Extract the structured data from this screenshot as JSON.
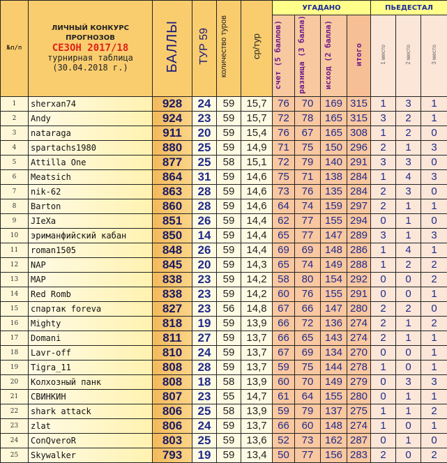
{
  "header": {
    "num_label": "№п/п",
    "title_line1": "ЛИЧНЫЙ КОНКУРС",
    "title_line2": "ПРОГНОЗОВ",
    "season": "СЕЗОН 2017/18",
    "subtitle": "турнирная таблица",
    "date": "(30.04.2018 г.)",
    "balls": "БАЛЛЫ",
    "tour": "ТУР 59",
    "tours_count": "количество туров",
    "avg": "ср/тур",
    "guessed_group": "УГАДАНО",
    "score": "счет (5 баллов)",
    "diff": "разница (3 балла)",
    "outcome": "исход (2 балла)",
    "total": "итого",
    "podium_group": "ПЬЕДЕСТАЛ",
    "place1": "1 место",
    "place2": "2 место",
    "place3": "3 место"
  },
  "rows": [
    [
      "1",
      "sherxan74",
      "928",
      "24",
      "59",
      "15,7",
      "76",
      "70",
      "169",
      "315",
      "1",
      "3",
      "1"
    ],
    [
      "2",
      "Andy",
      "924",
      "23",
      "59",
      "15,7",
      "72",
      "78",
      "165",
      "315",
      "3",
      "2",
      "1"
    ],
    [
      "3",
      "nataraga",
      "911",
      "20",
      "59",
      "15,4",
      "76",
      "67",
      "165",
      "308",
      "1",
      "2",
      "0"
    ],
    [
      "4",
      "spartachs1980",
      "880",
      "25",
      "59",
      "14,9",
      "71",
      "75",
      "150",
      "296",
      "2",
      "1",
      "3"
    ],
    [
      "5",
      "Attilla One",
      "877",
      "25",
      "58",
      "15,1",
      "72",
      "79",
      "140",
      "291",
      "3",
      "3",
      "0"
    ],
    [
      "6",
      "Meatsich",
      "864",
      "31",
      "59",
      "14,6",
      "75",
      "71",
      "138",
      "284",
      "1",
      "4",
      "3"
    ],
    [
      "7",
      "nik-62",
      "863",
      "28",
      "59",
      "14,6",
      "73",
      "76",
      "135",
      "284",
      "2",
      "3",
      "0"
    ],
    [
      "8",
      "Barton",
      "860",
      "28",
      "59",
      "14,6",
      "64",
      "74",
      "159",
      "297",
      "2",
      "1",
      "1"
    ],
    [
      "9",
      "JIeXa",
      "851",
      "26",
      "59",
      "14,4",
      "62",
      "77",
      "155",
      "294",
      "0",
      "1",
      "0"
    ],
    [
      "10",
      "эриманфийский кабан",
      "850",
      "14",
      "59",
      "14,4",
      "65",
      "77",
      "147",
      "289",
      "3",
      "1",
      "3"
    ],
    [
      "11",
      "roman1505",
      "848",
      "26",
      "59",
      "14,4",
      "69",
      "69",
      "148",
      "286",
      "1",
      "4",
      "1"
    ],
    [
      "12",
      "NAP",
      "845",
      "20",
      "59",
      "14,3",
      "65",
      "74",
      "149",
      "288",
      "1",
      "2",
      "2"
    ],
    [
      "13",
      "MAP",
      "838",
      "23",
      "59",
      "14,2",
      "58",
      "80",
      "154",
      "292",
      "0",
      "0",
      "2"
    ],
    [
      "14",
      "Red Romb",
      "838",
      "23",
      "59",
      "14,2",
      "60",
      "76",
      "155",
      "291",
      "0",
      "0",
      "1"
    ],
    [
      "15",
      "спартак foreva",
      "827",
      "23",
      "56",
      "14,8",
      "67",
      "66",
      "147",
      "280",
      "2",
      "2",
      "0"
    ],
    [
      "16",
      "Mighty",
      "818",
      "19",
      "59",
      "13,9",
      "66",
      "72",
      "136",
      "274",
      "2",
      "1",
      "2"
    ],
    [
      "17",
      "Domani",
      "811",
      "27",
      "59",
      "13,7",
      "66",
      "65",
      "143",
      "274",
      "2",
      "1",
      "1"
    ],
    [
      "18",
      "Lavr-off",
      "810",
      "24",
      "59",
      "13,7",
      "67",
      "69",
      "134",
      "270",
      "0",
      "0",
      "1"
    ],
    [
      "19",
      "Tigra_11",
      "808",
      "28",
      "59",
      "13,7",
      "59",
      "75",
      "144",
      "278",
      "1",
      "0",
      "1"
    ],
    [
      "20",
      "Колхозный панк",
      "808",
      "18",
      "58",
      "13,9",
      "60",
      "70",
      "149",
      "279",
      "0",
      "3",
      "3"
    ],
    [
      "21",
      "СВИНКИН",
      "807",
      "23",
      "55",
      "14,7",
      "61",
      "64",
      "155",
      "280",
      "0",
      "1",
      "1"
    ],
    [
      "22",
      "shark attack",
      "806",
      "25",
      "58",
      "13,9",
      "59",
      "79",
      "137",
      "275",
      "1",
      "1",
      "2"
    ],
    [
      "23",
      "zlat",
      "806",
      "24",
      "59",
      "13,7",
      "66",
      "60",
      "148",
      "274",
      "1",
      "0",
      "1"
    ],
    [
      "24",
      "ConQveroR",
      "803",
      "25",
      "59",
      "13,6",
      "52",
      "73",
      "162",
      "287",
      "0",
      "1",
      "0"
    ],
    [
      "25",
      "Skywalker",
      "793",
      "19",
      "59",
      "13,4",
      "50",
      "77",
      "156",
      "283",
      "2",
      "0",
      "2"
    ]
  ]
}
